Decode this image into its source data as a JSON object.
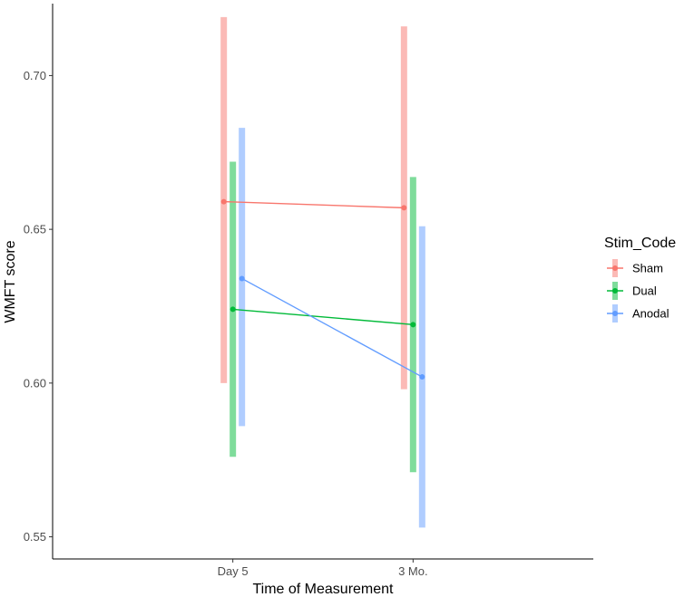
{
  "chart_data": {
    "type": "line",
    "title": "",
    "xlabel": "Time of Measurement",
    "ylabel": "WMFT score",
    "categories": [
      "Day 5",
      "3 Mo."
    ],
    "ylim": [
      0.5428,
      0.7234
    ],
    "yticks": [
      0.55,
      0.6,
      0.65,
      0.7
    ],
    "ytick_labels": [
      "0.55",
      "0.60",
      "0.65",
      "0.70"
    ],
    "grid": false,
    "legend": {
      "title": "Stim_Code",
      "position": "right"
    },
    "series": [
      {
        "name": "Sham",
        "color": "#F8766D",
        "values": [
          0.659,
          0.657
        ],
        "lower": [
          0.6,
          0.598
        ],
        "upper": [
          0.719,
          0.716
        ]
      },
      {
        "name": "Dual",
        "color": "#00BA38",
        "values": [
          0.624,
          0.619
        ],
        "lower": [
          0.576,
          0.571
        ],
        "upper": [
          0.672,
          0.667
        ]
      },
      {
        "name": "Anodal",
        "color": "#619CFF",
        "values": [
          0.634,
          0.602
        ],
        "lower": [
          0.586,
          0.553
        ],
        "upper": [
          0.683,
          0.651
        ]
      }
    ]
  }
}
